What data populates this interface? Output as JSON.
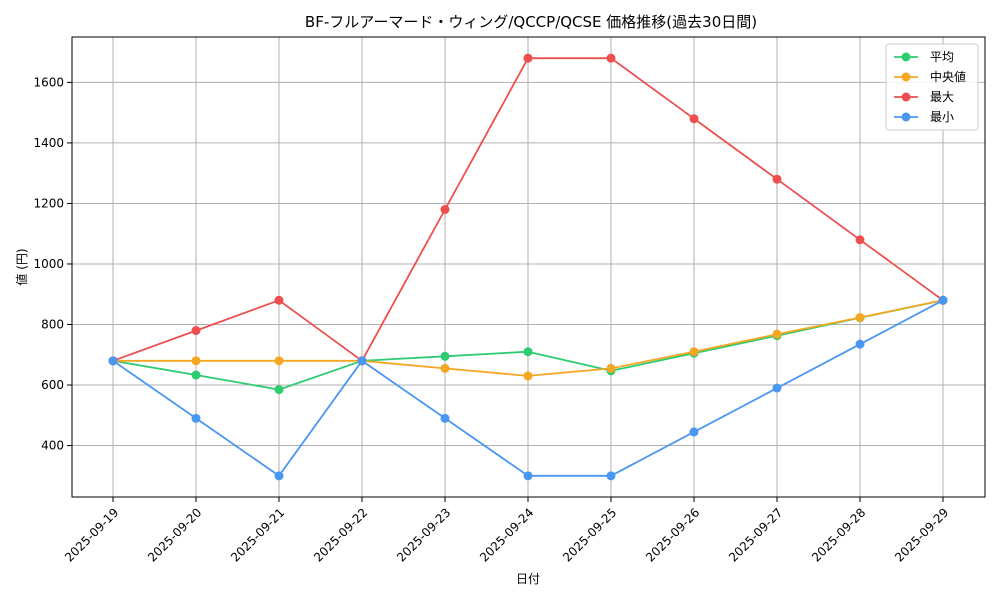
{
  "chart_data": {
    "type": "line",
    "title": "BF-フルアーマード・ウィング/QCCP/QCSE 価格推移(過去30日間)",
    "xlabel": "日付",
    "ylabel": "値 (円)",
    "categories": [
      "2025-09-19",
      "2025-09-20",
      "2025-09-21",
      "2025-09-22",
      "2025-09-23",
      "2025-09-24",
      "2025-09-25",
      "2025-09-26",
      "2025-09-27",
      "2025-09-28",
      "2025-09-29"
    ],
    "ylim": [
      230,
      1750
    ],
    "yticks": [
      400,
      600,
      800,
      1000,
      1200,
      1400,
      1600
    ],
    "grid": true,
    "legend_position": "top-right",
    "series": [
      {
        "name": "平均",
        "color": "#2ecc71",
        "values": [
          680,
          633,
          585,
          680,
          695,
          710,
          647,
          705,
          763,
          822,
          880
        ]
      },
      {
        "name": "中央値",
        "color": "#f5a623",
        "values": [
          680,
          680,
          680,
          680,
          655,
          630,
          655,
          710,
          768,
          823,
          880
        ]
      },
      {
        "name": "最大",
        "color": "#ef4e4e",
        "values": [
          680,
          780,
          880,
          680,
          1180,
          1680,
          1680,
          1480,
          1280,
          1080,
          880
        ]
      },
      {
        "name": "最小",
        "color": "#4a97f2",
        "values": [
          680,
          490,
          300,
          680,
          490,
          300,
          300,
          445,
          590,
          735,
          880
        ]
      }
    ]
  }
}
